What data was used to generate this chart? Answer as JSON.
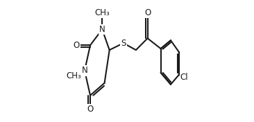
{
  "bg_color": "#ffffff",
  "line_color": "#1a1a1a",
  "line_width": 1.5,
  "font_size": 8.5,
  "figsize": [
    3.66,
    1.76
  ],
  "dpi": 100,
  "xlim": [
    0.0,
    1.0
  ],
  "ylim": [
    0.0,
    1.0
  ]
}
